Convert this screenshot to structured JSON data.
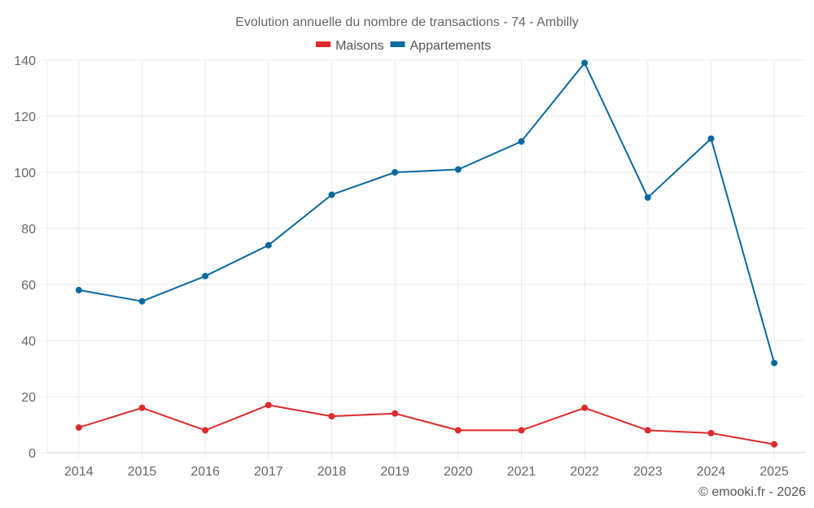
{
  "chart_data": {
    "type": "line",
    "title": "Evolution annuelle du nombre de transactions - 74 - Ambilly",
    "xlabel": "",
    "ylabel": "",
    "x": [
      "2014",
      "2015",
      "2016",
      "2017",
      "2018",
      "2019",
      "2020",
      "2021",
      "2022",
      "2023",
      "2024",
      "2025"
    ],
    "ylim": [
      0,
      140
    ],
    "yticks": [
      0,
      20,
      40,
      60,
      80,
      100,
      120,
      140
    ],
    "grid": true,
    "legend_position": "top-center",
    "series": [
      {
        "name": "Maisons",
        "color": "#dd2a2a",
        "values": [
          9,
          16,
          8,
          17,
          13,
          14,
          8,
          8,
          16,
          8,
          7,
          3
        ]
      },
      {
        "name": "Appartements",
        "color": "#0869a0",
        "values": [
          58,
          54,
          63,
          74,
          92,
          100,
          101,
          111,
          139,
          91,
          112,
          32
        ]
      }
    ],
    "credit": "© emooki.fr - 2026"
  }
}
